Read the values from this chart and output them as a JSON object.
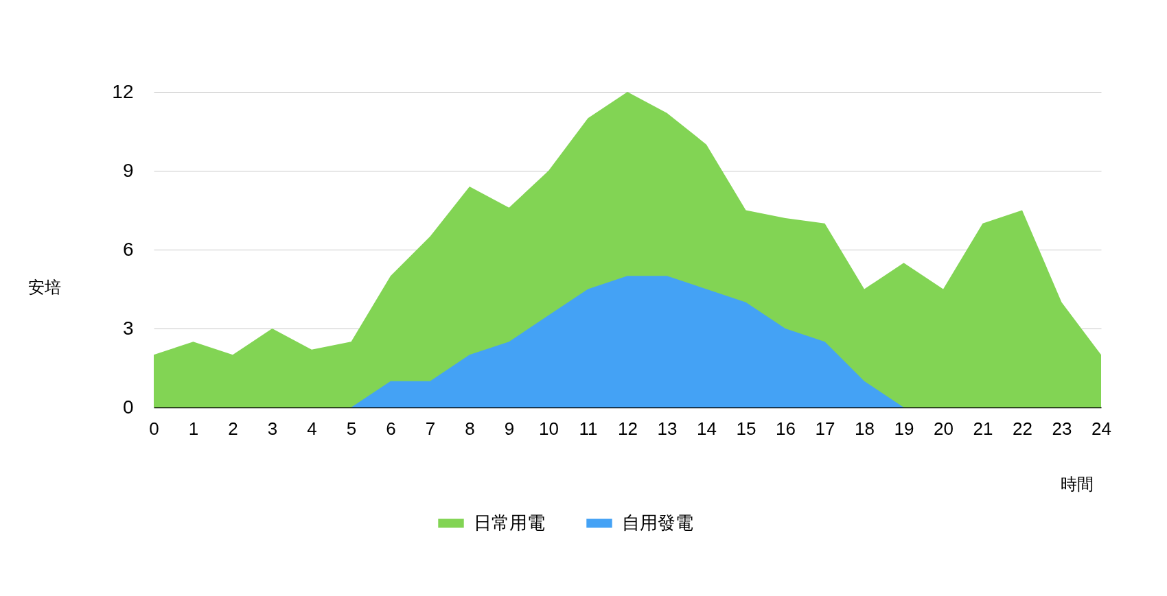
{
  "chart_data": {
    "type": "area",
    "xlabel": "時間",
    "ylabel": "安培",
    "x": [
      0,
      1,
      2,
      3,
      4,
      5,
      6,
      7,
      8,
      9,
      10,
      11,
      12,
      13,
      14,
      15,
      16,
      17,
      18,
      19,
      20,
      21,
      22,
      23,
      24
    ],
    "series": [
      {
        "name": "日常用電",
        "color": "#82d454",
        "values": [
          2,
          2.5,
          2,
          3,
          2.2,
          2.5,
          5,
          6.5,
          8.4,
          7.6,
          9,
          11,
          12,
          11.2,
          10,
          7.5,
          7.2,
          7,
          4.5,
          5.5,
          4.5,
          7,
          7.5,
          4,
          2
        ]
      },
      {
        "name": "自用發電",
        "color": "#44a2f5",
        "values": [
          null,
          null,
          null,
          null,
          null,
          0,
          1,
          1,
          2,
          2.5,
          3.5,
          4.5,
          5,
          5,
          4.5,
          4,
          3,
          2.5,
          1,
          0,
          null,
          null,
          null,
          null,
          null
        ]
      }
    ],
    "xlim": [
      0,
      24
    ],
    "xticks": [
      0,
      1,
      2,
      3,
      4,
      5,
      6,
      7,
      8,
      9,
      10,
      11,
      12,
      13,
      14,
      15,
      16,
      17,
      18,
      19,
      20,
      21,
      22,
      23,
      24
    ],
    "ylim": [
      0,
      12
    ],
    "yticks": [
      0,
      3,
      6,
      9,
      12
    ],
    "grid": "y",
    "legend": "bottom"
  }
}
